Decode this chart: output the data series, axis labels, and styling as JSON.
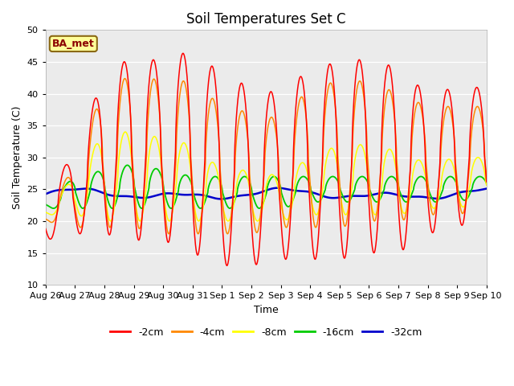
{
  "title": "Soil Temperatures Set C",
  "xlabel": "Time",
  "ylabel": "Soil Temperature (C)",
  "ylim": [
    10,
    50
  ],
  "yticks": [
    10,
    15,
    20,
    25,
    30,
    35,
    40,
    45,
    50
  ],
  "x_labels": [
    "Aug 26",
    "Aug 27",
    "Aug 28",
    "Aug 29",
    "Aug 30",
    "Aug 31",
    "Sep 1",
    "Sep 2",
    "Sep 3",
    "Sep 4",
    "Sep 5",
    "Sep 6",
    "Sep 7",
    "Sep 8",
    "Sep 9",
    "Sep 10"
  ],
  "legend_labels": [
    "-2cm",
    "-4cm",
    "-8cm",
    "-16cm",
    "-32cm"
  ],
  "legend_colors": [
    "#ff0000",
    "#ff8800",
    "#ffff00",
    "#00cc00",
    "#0000cc"
  ],
  "annotation_text": "BA_met",
  "background_color": "#ebebeb",
  "title_fontsize": 12,
  "axis_label_fontsize": 9,
  "tick_fontsize": 8
}
